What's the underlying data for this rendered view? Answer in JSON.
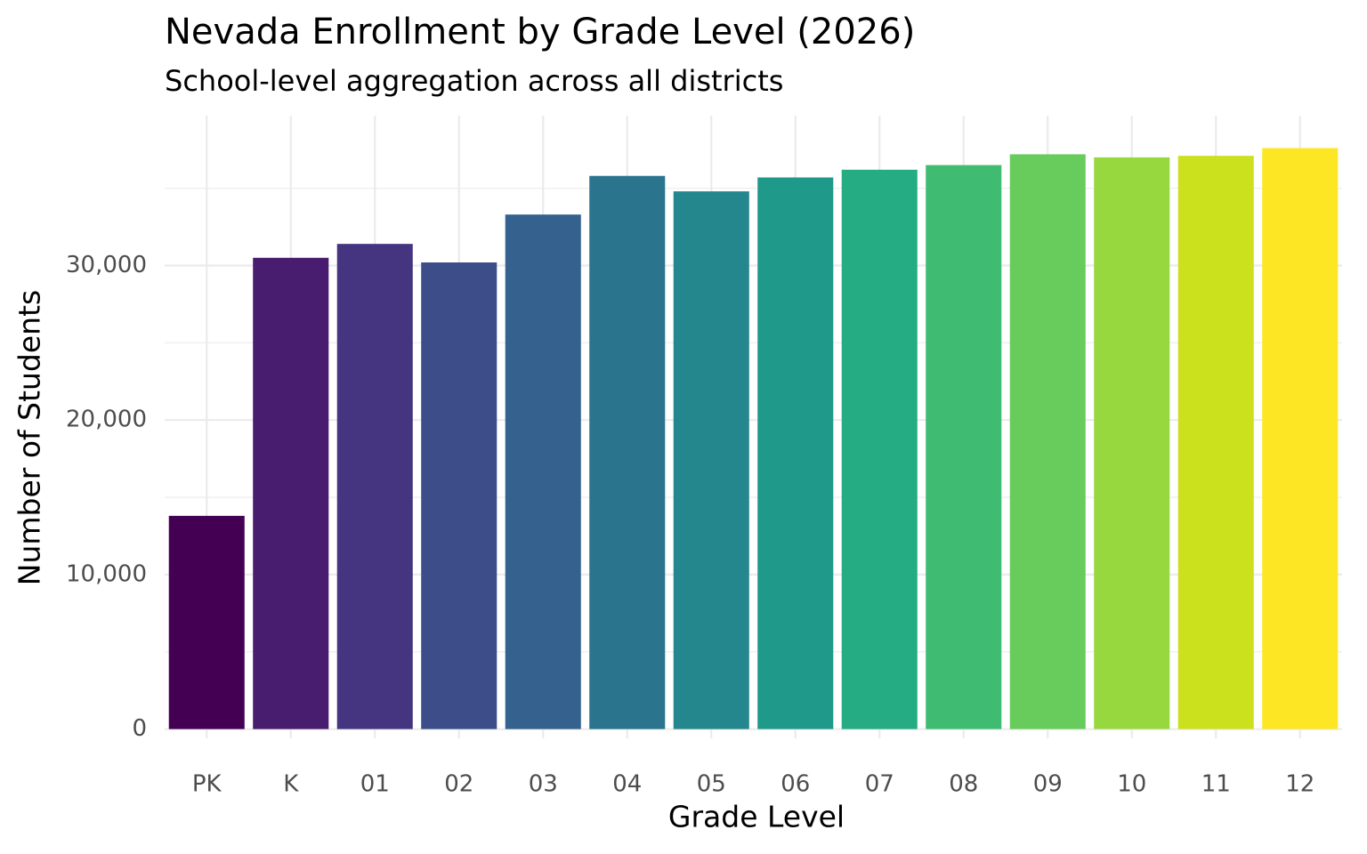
{
  "chart_data": {
    "type": "bar",
    "title": "Nevada Enrollment by Grade Level (2026)",
    "subtitle": "School-level aggregation across all districts",
    "x_label": "Grade Level",
    "y_label": "Number of Students",
    "categories": [
      "PK",
      "K",
      "01",
      "02",
      "03",
      "04",
      "05",
      "06",
      "07",
      "08",
      "09",
      "10",
      "11",
      "12"
    ],
    "values": [
      13800,
      30500,
      31400,
      30200,
      33300,
      35800,
      34800,
      35700,
      36200,
      36500,
      37200,
      37000,
      37100,
      37600
    ],
    "colors": [
      "#440154",
      "#481c6e",
      "#453581",
      "#3d4d8a",
      "#34618d",
      "#2b748e",
      "#24878e",
      "#1f998a",
      "#25ac82",
      "#40bc72",
      "#67cc5c",
      "#97d83f",
      "#cbe11e",
      "#fde725"
    ],
    "ylim": [
      -600,
      39700
    ],
    "yticks": [
      0,
      {
        "value": 10000,
        "label": "10,000"
      },
      {
        "value": 20000,
        "label": "20,000"
      },
      {
        "value": 30000,
        "label": "30,000"
      }
    ],
    "minor_yticks": [
      5000,
      15000,
      25000,
      35000
    ],
    "grid": true
  }
}
